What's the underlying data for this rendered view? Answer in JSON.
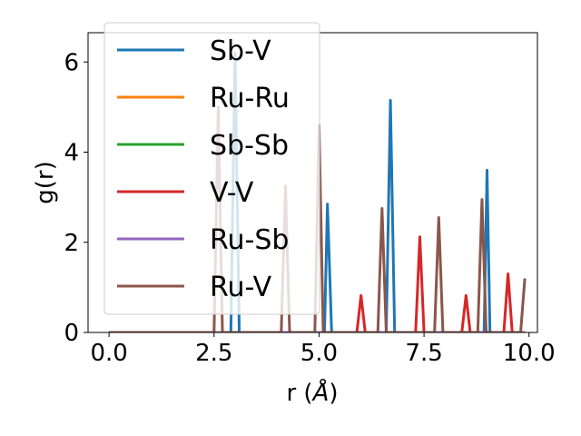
{
  "chart_data": {
    "type": "line",
    "xlabel_main": "r (",
    "xlabel_unit": "Å",
    "xlabel_close": ")",
    "ylabel": "g(r)",
    "xlim": [
      -0.5,
      10.2
    ],
    "ylim": [
      0,
      6.65
    ],
    "xticks": [
      0.0,
      2.5,
      5.0,
      7.5,
      10.0
    ],
    "xtick_labels": [
      "0.0",
      "2.5",
      "5.0",
      "7.5",
      "10.0"
    ],
    "yticks": [
      0,
      2,
      4,
      6
    ],
    "ytick_labels": [
      "0",
      "2",
      "4",
      "6"
    ],
    "legend_position": "upper-left",
    "series": [
      {
        "name": "Sb-V",
        "color": "#1f77b4",
        "points": [
          [
            0,
            0
          ],
          [
            2.9,
            0
          ],
          [
            3.0,
            6.2
          ],
          [
            3.1,
            0
          ],
          [
            5.13,
            0
          ],
          [
            5.2,
            2.85
          ],
          [
            5.3,
            0
          ],
          [
            6.6,
            0
          ],
          [
            6.7,
            5.15
          ],
          [
            6.8,
            0
          ],
          [
            8.93,
            0
          ],
          [
            9.0,
            3.6
          ],
          [
            9.07,
            0
          ],
          [
            9.9,
            0
          ]
        ]
      },
      {
        "name": "Ru-Ru",
        "color": "#ff7f0e",
        "points": [
          [
            0,
            0
          ],
          [
            9.9,
            0
          ]
        ]
      },
      {
        "name": "Sb-Sb",
        "color": "#2ca02c",
        "points": [
          [
            0,
            0
          ],
          [
            9.9,
            0
          ]
        ]
      },
      {
        "name": "V-V",
        "color": "#d62728",
        "points": [
          [
            0,
            0
          ],
          [
            5.9,
            0
          ],
          [
            6.0,
            0.82
          ],
          [
            6.1,
            0
          ],
          [
            7.3,
            0
          ],
          [
            7.4,
            2.12
          ],
          [
            7.5,
            0
          ],
          [
            8.4,
            0
          ],
          [
            8.5,
            0.82
          ],
          [
            8.6,
            0
          ],
          [
            9.4,
            0
          ],
          [
            9.5,
            1.3
          ],
          [
            9.6,
            0
          ],
          [
            9.9,
            0
          ]
        ]
      },
      {
        "name": "Ru-Sb",
        "color": "#9467bd",
        "points": [
          [
            0,
            0
          ],
          [
            9.9,
            0
          ]
        ]
      },
      {
        "name": "Ru-V",
        "color": "#8c564b",
        "points": [
          [
            0,
            0
          ],
          [
            2.5,
            0
          ],
          [
            2.6,
            5.0
          ],
          [
            2.7,
            0
          ],
          [
            4.1,
            0
          ],
          [
            4.2,
            3.25
          ],
          [
            4.3,
            0
          ],
          [
            4.9,
            0
          ],
          [
            5.0,
            4.6
          ],
          [
            5.1,
            0
          ],
          [
            6.4,
            0
          ],
          [
            6.5,
            2.75
          ],
          [
            6.6,
            0
          ],
          [
            7.75,
            0
          ],
          [
            7.85,
            2.55
          ],
          [
            7.95,
            0
          ],
          [
            8.78,
            0
          ],
          [
            8.88,
            2.95
          ],
          [
            8.98,
            0
          ],
          [
            9.8,
            0
          ],
          [
            9.9,
            1.2
          ]
        ]
      }
    ]
  }
}
